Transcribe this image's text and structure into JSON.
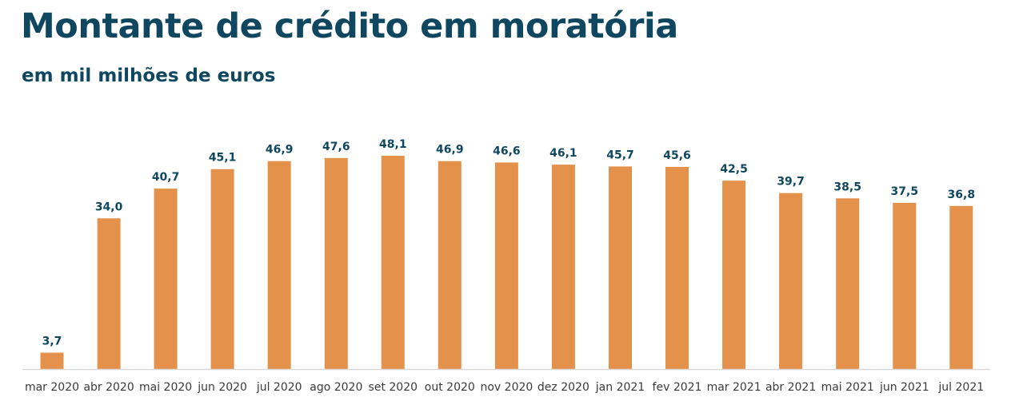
{
  "header": {
    "title": "Montante de crédito em moratória",
    "subtitle": "em mil milhões de euros"
  },
  "colors": {
    "bar": "#e4914c",
    "title": "#0f4761",
    "axis": "#d9d9d9"
  },
  "chart_data": {
    "type": "bar",
    "title": "Montante de crédito em moratória",
    "subtitle": "em mil milhões de euros",
    "xlabel": "",
    "ylabel": "",
    "ylim": [
      0,
      50
    ],
    "grid": false,
    "categories": [
      "mar 2020",
      "abr 2020",
      "mai 2020",
      "jun 2020",
      "jul 2020",
      "ago 2020",
      "set 2020",
      "out 2020",
      "nov 2020",
      "dez 2020",
      "jan 2021",
      "fev 2021",
      "mar 2021",
      "abr 2021",
      "mai 2021",
      "jun 2021",
      "jul 2021"
    ],
    "values": [
      3.7,
      34.0,
      40.7,
      45.1,
      46.9,
      47.6,
      48.1,
      46.9,
      46.6,
      46.1,
      45.7,
      45.6,
      42.5,
      39.7,
      38.5,
      37.5,
      36.8
    ],
    "value_labels": [
      "3,7",
      "34,0",
      "40,7",
      "45,1",
      "46,9",
      "47,6",
      "48,1",
      "46,9",
      "46,6",
      "46,1",
      "45,7",
      "45,6",
      "42,5",
      "39,7",
      "38,5",
      "37,5",
      "36,8"
    ]
  }
}
